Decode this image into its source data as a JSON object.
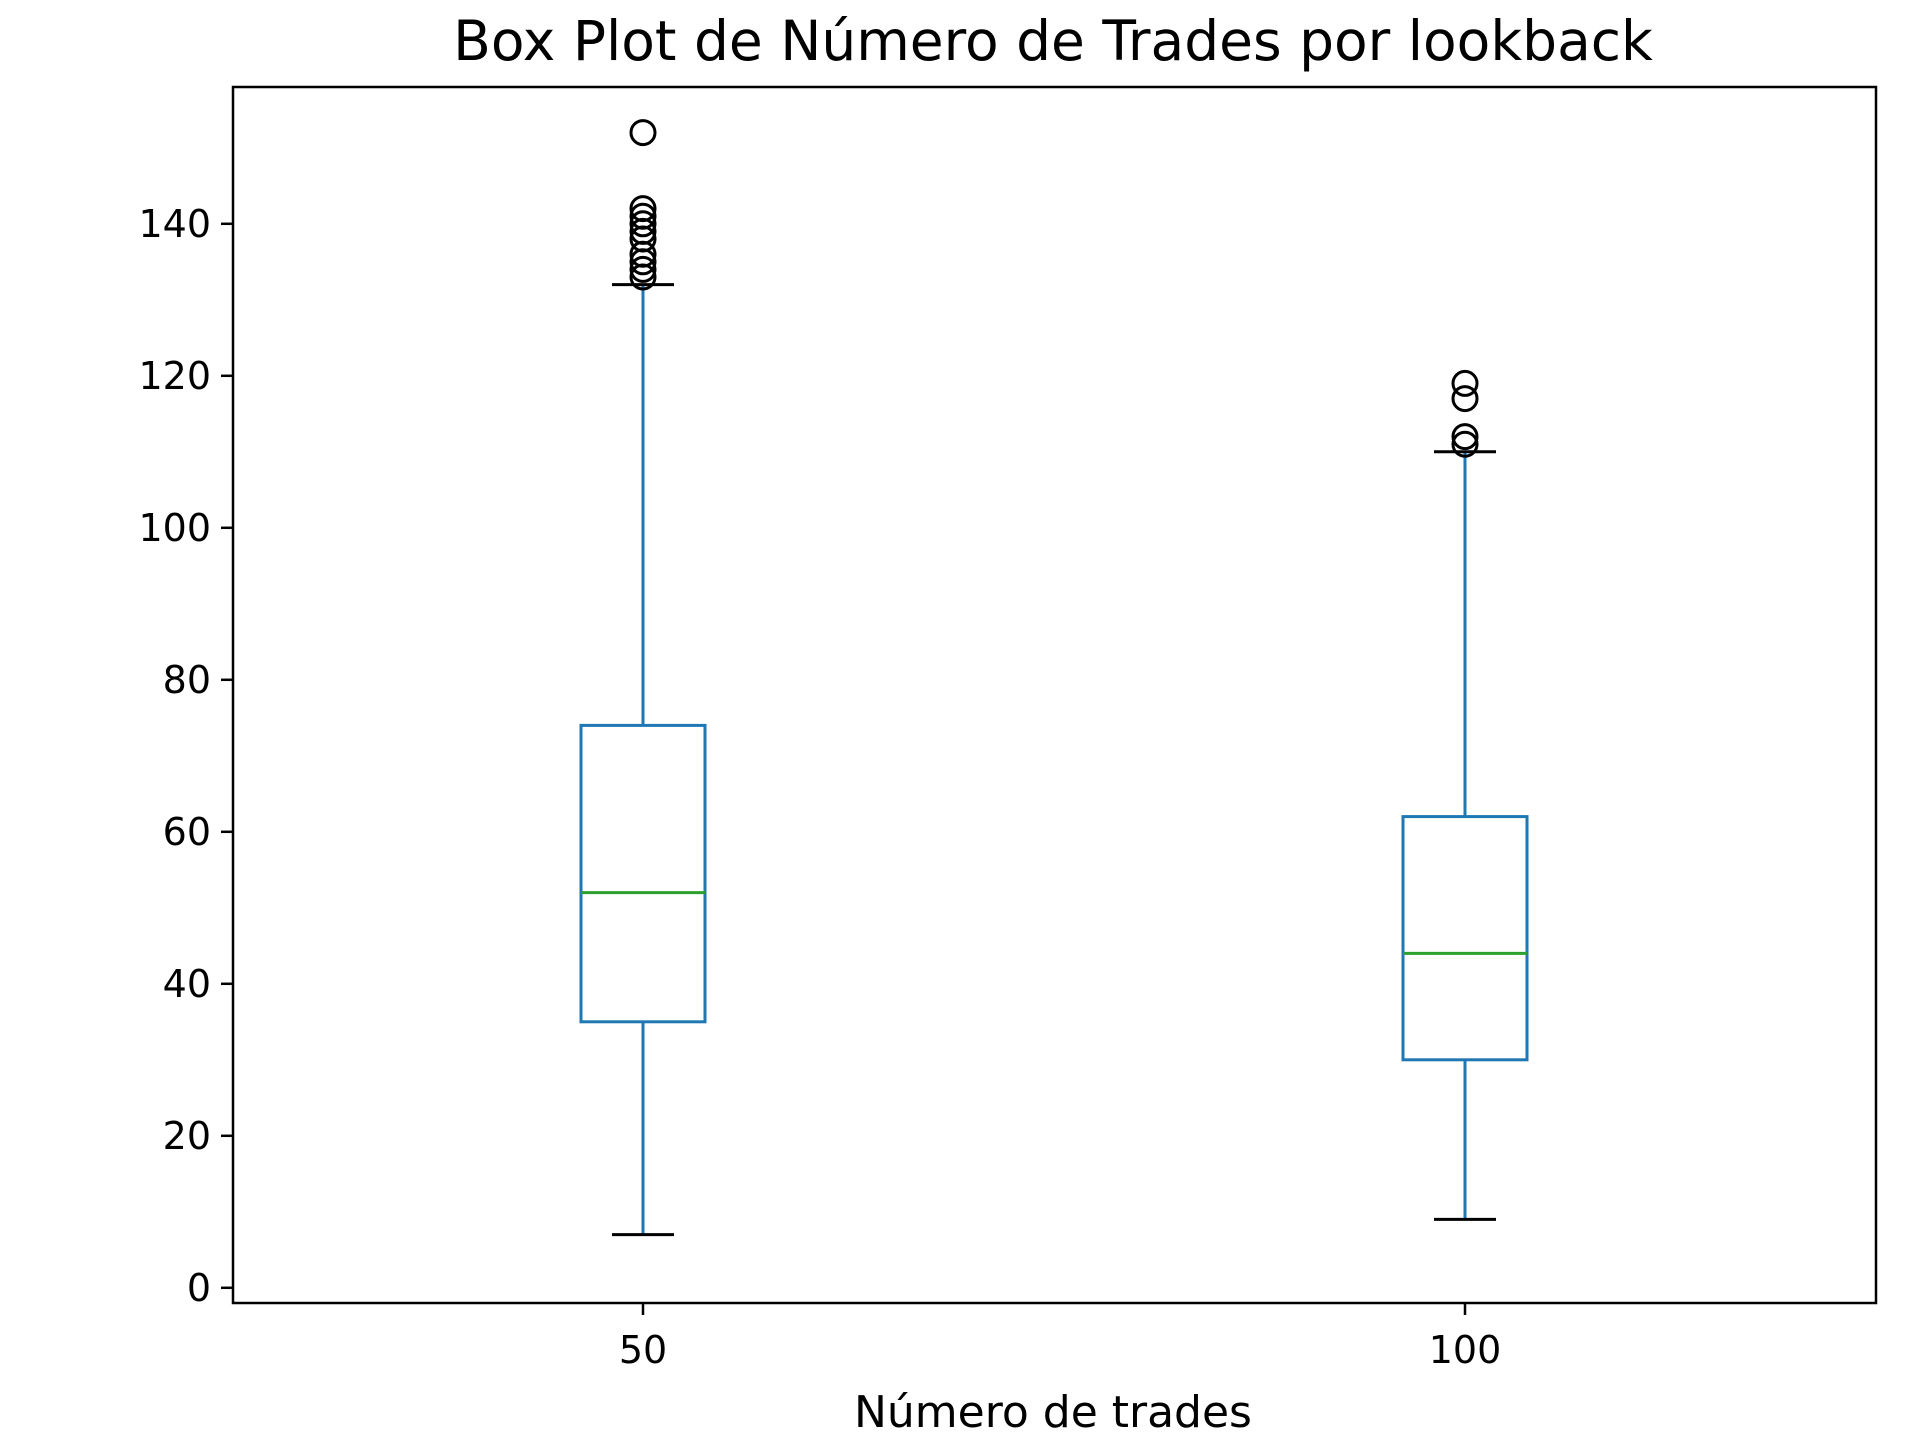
{
  "chart_data": {
    "type": "box",
    "title": "Box Plot de Número de Trades por lookback",
    "xlabel": "Número de trades",
    "ylabel": "",
    "categories": [
      "50",
      "100"
    ],
    "ylim": [
      -2,
      158
    ],
    "yticks": [
      0,
      20,
      40,
      60,
      80,
      100,
      120,
      140
    ],
    "ytick_labels": [
      "0",
      "20",
      "40",
      "60",
      "80",
      "100",
      "120",
      "140"
    ],
    "grid": false,
    "boxes": [
      {
        "category": "50",
        "whisker_low": 7,
        "q1": 35,
        "median": 52,
        "q3": 74,
        "whisker_high": 132,
        "outliers": [
          133,
          134,
          135,
          136,
          138,
          139,
          140,
          141,
          142,
          152
        ]
      },
      {
        "category": "100",
        "whisker_low": 9,
        "q1": 30,
        "median": 44,
        "q3": 62,
        "whisker_high": 110,
        "outliers": [
          111,
          112,
          117,
          119
        ]
      }
    ],
    "colors": {
      "box": "#1f77b4",
      "median": "#2ca02c",
      "caps": "#000000",
      "outliers": "#000000"
    }
  }
}
